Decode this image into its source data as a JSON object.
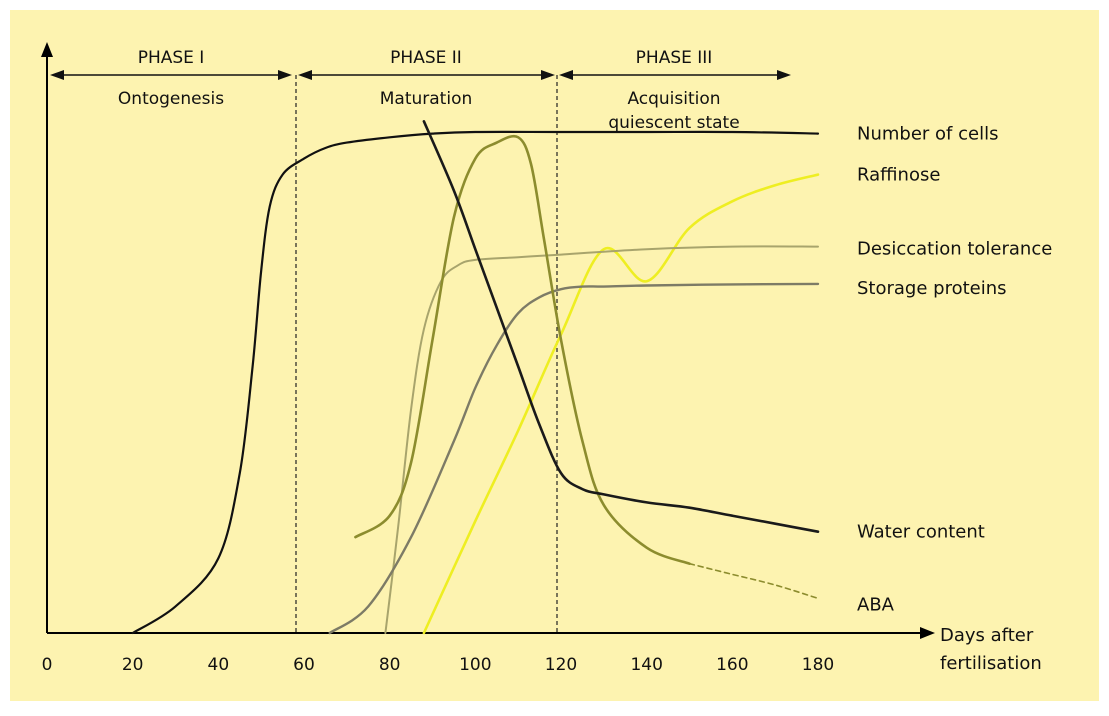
{
  "chart_data": {
    "type": "line",
    "xlabel": "Days after fertilisation",
    "xlabel_lines": [
      "Days after",
      "fertilisation"
    ],
    "x_ticks": [
      0,
      20,
      40,
      60,
      80,
      100,
      120,
      140,
      160,
      180
    ],
    "xlim": [
      0,
      180
    ],
    "ylim": [
      0,
      1
    ],
    "grid": false,
    "legend": "labels at right end of each curve",
    "colors": {
      "background": "#fdf3b0",
      "frame": "#ffffff",
      "axis": "#000000",
      "number_of_cells": "#111111",
      "water_content": "#1a1a1a",
      "aba": "#8c8c2e",
      "raffinose": "#eeee22",
      "desiccation_tolerance": "#a8a46c",
      "storage_proteins": "#7d7b66"
    },
    "phases": [
      {
        "name": "PHASE I",
        "label": "Ontogenesis",
        "start": 0,
        "end": 60
      },
      {
        "name": "PHASE II",
        "label": "Maturation",
        "start": 60,
        "end": 120
      },
      {
        "name": "PHASE III",
        "label_lines": [
          "Acquisition",
          "quiescent state"
        ],
        "start": 120,
        "end": 180
      }
    ],
    "phase_boundaries": [
      60,
      120
    ],
    "series": [
      {
        "key": "number_of_cells",
        "name": "Number of cells",
        "x": [
          20,
          30,
          40,
          45,
          48,
          50,
          52,
          55,
          60,
          65,
          70,
          80,
          90,
          100,
          120,
          140,
          160,
          180
        ],
        "values": [
          0.0,
          0.05,
          0.14,
          0.3,
          0.5,
          0.68,
          0.8,
          0.86,
          0.89,
          0.91,
          0.92,
          0.93,
          0.937,
          0.94,
          0.94,
          0.94,
          0.94,
          0.937
        ]
      },
      {
        "key": "water_content",
        "name": "Water content",
        "x": [
          88,
          95,
          100,
          105,
          110,
          115,
          120,
          125,
          130,
          140,
          150,
          160,
          170,
          180
        ],
        "values": [
          0.96,
          0.83,
          0.72,
          0.61,
          0.5,
          0.39,
          0.3,
          0.27,
          0.26,
          0.245,
          0.235,
          0.22,
          0.205,
          0.19
        ]
      },
      {
        "key": "aba",
        "name": "ABA",
        "x": [
          72,
          80,
          85,
          90,
          95,
          100,
          105,
          110,
          113,
          116,
          120,
          125,
          130,
          140,
          150
        ],
        "values": [
          0.18,
          0.22,
          0.32,
          0.55,
          0.78,
          0.89,
          0.92,
          0.93,
          0.88,
          0.74,
          0.55,
          0.36,
          0.24,
          0.16,
          0.13
        ]
      },
      {
        "key": "aba_extrapolated",
        "name": "ABA",
        "dashed": true,
        "x": [
          150,
          160,
          170,
          180
        ],
        "values": [
          0.13,
          0.11,
          0.09,
          0.065
        ]
      },
      {
        "key": "raffinose",
        "name": "Raffinose",
        "x": [
          88,
          100,
          110,
          120,
          130,
          140,
          150,
          160,
          170,
          180
        ],
        "values": [
          0.0,
          0.21,
          0.38,
          0.56,
          0.72,
          0.66,
          0.76,
          0.81,
          0.84,
          0.86
        ]
      },
      {
        "key": "desiccation_tolerance",
        "name": "Desiccation tolerance",
        "x": [
          79,
          82,
          85,
          88,
          92,
          96,
          100,
          110,
          120,
          140,
          160,
          180
        ],
        "values": [
          0.0,
          0.2,
          0.42,
          0.57,
          0.66,
          0.69,
          0.7,
          0.705,
          0.71,
          0.72,
          0.725,
          0.725
        ]
      },
      {
        "key": "storage_proteins",
        "name": "Storage proteins",
        "x": [
          66,
          75,
          85,
          95,
          100,
          105,
          110,
          115,
          120,
          125,
          130,
          140,
          160,
          180
        ],
        "values": [
          0.0,
          0.05,
          0.18,
          0.36,
          0.46,
          0.54,
          0.6,
          0.63,
          0.645,
          0.65,
          0.65,
          0.652,
          0.654,
          0.655
        ]
      }
    ]
  }
}
